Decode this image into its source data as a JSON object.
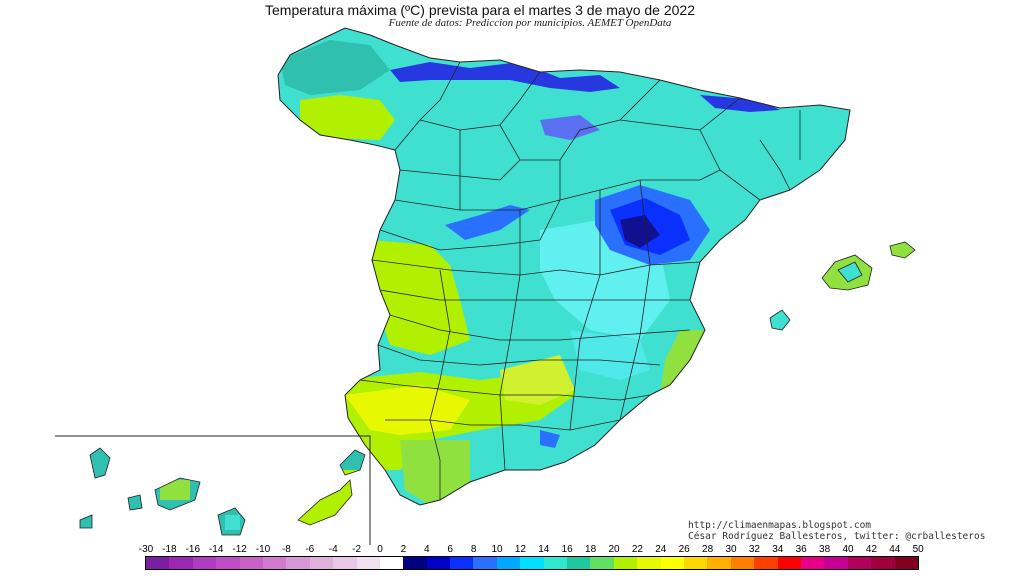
{
  "title": "Temperatura máxima (ºC) prevista para el martes 3 de mayo de 2022",
  "subtitle": "Fuente de datos: Prediccion por municipios. AEMET OpenData",
  "credits": {
    "blog": "http://climaenmapas.blogspot.com",
    "author": "César Rodríguez Ballesteros, twitter: @crballesteros"
  },
  "legend": {
    "labels": [
      "-30",
      "-18",
      "-16",
      "-14",
      "-12",
      "-10",
      "-8",
      "-6",
      "-4",
      "-2",
      "0",
      "2",
      "4",
      "6",
      "8",
      "10",
      "12",
      "14",
      "16",
      "18",
      "20",
      "22",
      "24",
      "26",
      "28",
      "30",
      "32",
      "34",
      "36",
      "38",
      "40",
      "42",
      "44",
      "50"
    ],
    "colors": [
      "#7b1fa2",
      "#9c27b0",
      "#b03cc0",
      "#c04cc8",
      "#c862c8",
      "#d07ad0",
      "#d898d6",
      "#e0b0dc",
      "#e8c8e6",
      "#f0e0f0",
      "#ffffff",
      "#000080",
      "#0000c8",
      "#0a30ff",
      "#2a70ff",
      "#00a8ff",
      "#00e0ff",
      "#30e8d0",
      "#20c8a0",
      "#60e060",
      "#b0f000",
      "#e8f800",
      "#ffff00",
      "#ffd800",
      "#ffb000",
      "#ff8000",
      "#ff4000",
      "#ff0000",
      "#e8008a",
      "#c80096",
      "#b0005a",
      "#a0003c",
      "#800020"
    ]
  },
  "colors": {
    "cyan": "#40e0d0",
    "teal": "#30c0b0",
    "blue": "#2838e0",
    "navy": "#101090",
    "green": "#90e040",
    "yellow": "#e8f020",
    "lightblue": "#60f0f0"
  },
  "regions": [
    "peninsula",
    "balearic-mallorca",
    "balearic-menorca",
    "balearic-ibiza",
    "canary-islands"
  ]
}
